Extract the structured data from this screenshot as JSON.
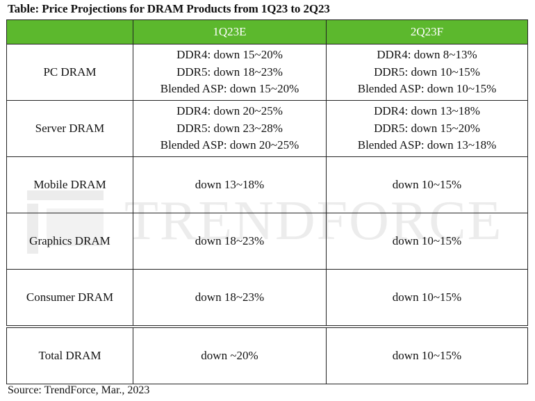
{
  "title": "Table: Price Projections for DRAM Products from 1Q23 to 2Q23",
  "header": {
    "col0": "",
    "col1": "1Q23E",
    "col2": "2Q23F"
  },
  "rows": [
    {
      "label": "PC DRAM",
      "q1": [
        "DDR4: down 15~20%",
        "DDR5: down 18~23%",
        "Blended ASP: down 15~20%"
      ],
      "q2": [
        "DDR4: down 8~13%",
        "DDR5: down 10~15%",
        "Blended ASP: down 10~15%"
      ]
    },
    {
      "label": "Server DRAM",
      "q1": [
        "DDR4: down 20~25%",
        "DDR5: down 23~28%",
        "Blended ASP: down 20~25%"
      ],
      "q2": [
        "DDR4: down 13~18%",
        "DDR5: down 15~20%",
        "Blended ASP: down 13~18%"
      ]
    },
    {
      "label": "Mobile DRAM",
      "q1": "down 13~18%",
      "q2": "down 10~15%"
    },
    {
      "label": "Graphics DRAM",
      "q1": "down 18~23%",
      "q2": "down 10~15%"
    },
    {
      "label": "Consumer DRAM",
      "q1": "down 18~23%",
      "q2": "down 10~15%"
    },
    {
      "label": "Total DRAM",
      "q1": "down ~20%",
      "q2": "down 10~15%"
    }
  ],
  "source": "Source: TrendForce, Mar., 2023",
  "watermark": {
    "text": "TRENDFORCE",
    "color": "#ececec"
  },
  "colors": {
    "header_bg": "#5cb82d",
    "header_text": "#ffffff",
    "border": "#222222"
  }
}
